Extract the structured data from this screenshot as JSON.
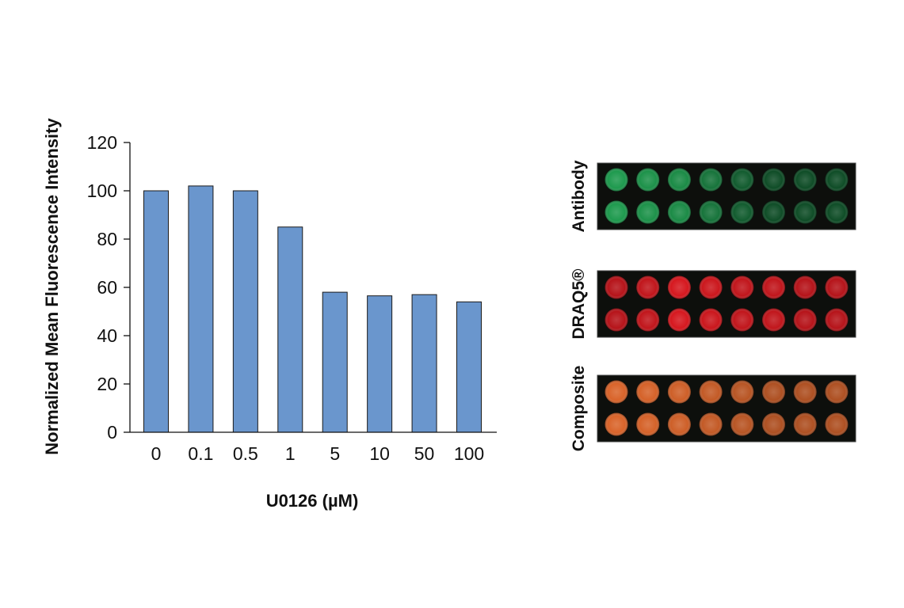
{
  "chart_data": {
    "type": "bar",
    "categories": [
      "0",
      "0.1",
      "0.5",
      "1",
      "5",
      "10",
      "50",
      "100"
    ],
    "values": [
      100,
      102,
      100,
      85,
      58,
      56.5,
      57,
      54
    ],
    "xlabel": "U0126 (µM)",
    "ylabel": "Normalized Mean Fluorescence Intensity",
    "ylim": [
      0,
      120
    ],
    "yticks": [
      0,
      20,
      40,
      60,
      80,
      100,
      120
    ],
    "bar_color": "#6a96cd",
    "grid": false
  },
  "panels": [
    {
      "label": "Antibody",
      "fill": "#1e9a4e",
      "intensities": [
        1.0,
        0.95,
        0.9,
        0.75,
        0.6,
        0.5,
        0.5,
        0.5
      ]
    },
    {
      "label": "DRAQ5®",
      "fill": "#d6181f",
      "intensities": [
        0.85,
        0.9,
        1.0,
        0.95,
        0.9,
        0.9,
        0.85,
        0.85
      ]
    },
    {
      "label": "Composite",
      "fill": "#d9642a",
      "intensities": [
        1.0,
        0.98,
        0.95,
        0.9,
        0.85,
        0.8,
        0.8,
        0.8
      ]
    }
  ]
}
